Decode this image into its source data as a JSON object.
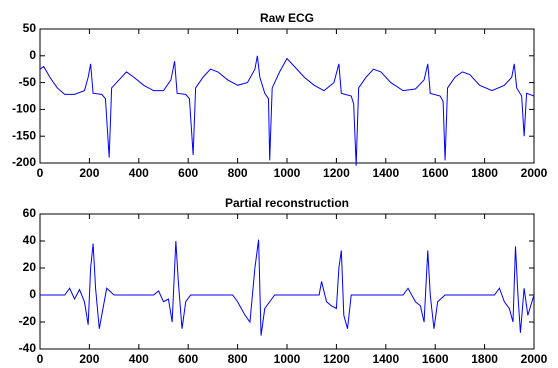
{
  "chart_data": [
    {
      "type": "line",
      "title": "Raw ECG",
      "x": [
        0,
        15,
        40,
        70,
        100,
        140,
        180,
        195,
        205,
        215,
        250,
        265,
        280,
        290,
        320,
        350,
        380,
        420,
        460,
        500,
        530,
        545,
        555,
        590,
        605,
        620,
        630,
        660,
        690,
        720,
        760,
        800,
        840,
        870,
        880,
        890,
        910,
        925,
        930,
        940,
        970,
        1000,
        1030,
        1070,
        1110,
        1150,
        1190,
        1210,
        1220,
        1260,
        1270,
        1280,
        1290,
        1320,
        1350,
        1380,
        1420,
        1470,
        1520,
        1555,
        1570,
        1580,
        1620,
        1632,
        1640,
        1650,
        1680,
        1710,
        1740,
        1780,
        1830,
        1880,
        1910,
        1920,
        1930,
        1950,
        1960,
        1970,
        2000
      ],
      "series": [
        {
          "name": "Raw ECG",
          "color": "#0000ff",
          "values": [
            -25,
            -20,
            -40,
            -60,
            -72,
            -72,
            -65,
            -40,
            -15,
            -70,
            -72,
            -80,
            -190,
            -60,
            -45,
            -30,
            -40,
            -55,
            -65,
            -65,
            -45,
            -10,
            -70,
            -72,
            -80,
            -185,
            -60,
            -40,
            -25,
            -30,
            -45,
            -55,
            -50,
            -25,
            0,
            -40,
            -70,
            -80,
            -195,
            -60,
            -30,
            -5,
            -20,
            -40,
            -55,
            -65,
            -50,
            -15,
            -70,
            -75,
            -90,
            -205,
            -60,
            -40,
            -25,
            -30,
            -50,
            -65,
            -62,
            -45,
            -15,
            -70,
            -75,
            -85,
            -195,
            -60,
            -40,
            -30,
            -35,
            -55,
            -65,
            -55,
            -40,
            -15,
            -60,
            -75,
            -150,
            -70,
            -75
          ]
        }
      ],
      "xlim": [
        0,
        2000
      ],
      "xticks": [
        0,
        200,
        400,
        600,
        800,
        1000,
        1200,
        1400,
        1600,
        1800,
        2000
      ],
      "ylim": [
        -200,
        50
      ],
      "yticks": [
        -200,
        -150,
        -100,
        -50,
        0,
        50
      ]
    },
    {
      "type": "line",
      "title": "Partial reconstruction",
      "x": [
        0,
        100,
        120,
        140,
        160,
        180,
        195,
        205,
        215,
        225,
        240,
        255,
        270,
        300,
        460,
        480,
        500,
        520,
        535,
        550,
        560,
        575,
        590,
        610,
        780,
        800,
        830,
        850,
        870,
        885,
        895,
        910,
        930,
        950,
        1130,
        1140,
        1160,
        1180,
        1200,
        1210,
        1220,
        1230,
        1245,
        1260,
        1470,
        1490,
        1520,
        1540,
        1555,
        1570,
        1580,
        1595,
        1610,
        1640,
        1840,
        1860,
        1880,
        1900,
        1915,
        1925,
        1935,
        1945,
        1960,
        1975,
        2000
      ],
      "series": [
        {
          "name": "Partial reconstruction",
          "color": "#0000ff",
          "values": [
            0,
            0,
            5,
            -3,
            4,
            -5,
            -22,
            20,
            38,
            5,
            -25,
            -10,
            5,
            0,
            0,
            3,
            -5,
            -3,
            -20,
            40,
            10,
            -25,
            -5,
            0,
            0,
            -5,
            -15,
            -20,
            20,
            41,
            -30,
            -10,
            -5,
            0,
            0,
            10,
            -5,
            -8,
            -10,
            20,
            33,
            -15,
            -25,
            0,
            0,
            5,
            -5,
            -8,
            -20,
            33,
            0,
            -25,
            -5,
            0,
            0,
            5,
            -5,
            -10,
            -20,
            36,
            0,
            -28,
            5,
            -15,
            0
          ]
        }
      ],
      "xlim": [
        0,
        2000
      ],
      "xticks": [
        0,
        200,
        400,
        600,
        800,
        1000,
        1200,
        1400,
        1600,
        1800,
        2000
      ],
      "ylim": [
        -40,
        60
      ],
      "yticks": [
        -40,
        -20,
        0,
        20,
        40,
        60
      ]
    }
  ]
}
